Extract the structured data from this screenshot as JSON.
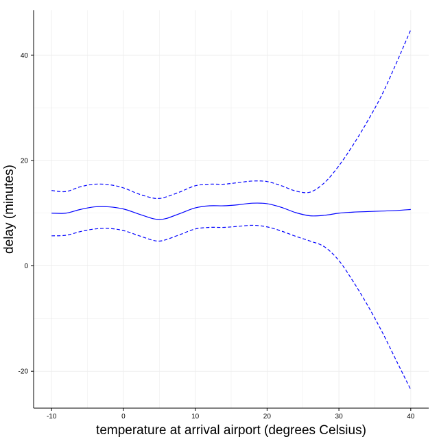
{
  "chart_data": {
    "type": "line",
    "title": "",
    "xlabel": "temperature at arrival airport (degrees Celsius)",
    "ylabel": "delay (minutes)",
    "xlim": [
      -12.5,
      42.5
    ],
    "ylim": [
      -27,
      48.5
    ],
    "x_ticks": [
      -10,
      0,
      10,
      20,
      30,
      40
    ],
    "x_tick_labels": [
      "-10",
      "0",
      "10",
      "20",
      "30",
      "40"
    ],
    "y_ticks": [
      -20,
      0,
      20,
      40
    ],
    "y_tick_labels": [
      "-20",
      "0",
      "20",
      "40"
    ],
    "grid": true,
    "legend": "none",
    "colors": {
      "line": "#0000ff",
      "grid": "#ebebeb",
      "axis": "#000000"
    },
    "series": [
      {
        "style": "dashed",
        "role": "upper",
        "x": [
          -10,
          -8,
          -6,
          -4,
          -2,
          0,
          2,
          4,
          5,
          6,
          8,
          10,
          12,
          14,
          16,
          18,
          20,
          22,
          24,
          26,
          28,
          30,
          32,
          34,
          36,
          38,
          40
        ],
        "y": [
          14.3,
          14.1,
          15.0,
          15.5,
          15.4,
          14.8,
          13.7,
          12.9,
          12.8,
          13.1,
          14.1,
          15.2,
          15.5,
          15.5,
          15.8,
          16.1,
          16.0,
          15.2,
          14.2,
          14.0,
          15.8,
          19.0,
          23.0,
          27.5,
          32.5,
          38.5,
          44.8
        ]
      },
      {
        "style": "solid",
        "role": "estimate",
        "x": [
          -10,
          -8,
          -6,
          -4,
          -2,
          0,
          2,
          4,
          5,
          6,
          8,
          10,
          12,
          14,
          16,
          18,
          20,
          22,
          24,
          26,
          28,
          30,
          32,
          34,
          36,
          38,
          40
        ],
        "y": [
          10.0,
          10.0,
          10.7,
          11.2,
          11.2,
          10.8,
          9.9,
          9.0,
          8.8,
          9.0,
          10.0,
          11.0,
          11.4,
          11.4,
          11.6,
          11.9,
          11.8,
          11.1,
          10.1,
          9.5,
          9.6,
          10.0,
          10.2,
          10.3,
          10.4,
          10.5,
          10.7
        ]
      },
      {
        "style": "dashed",
        "role": "lower",
        "x": [
          -10,
          -8,
          -6,
          -4,
          -2,
          0,
          2,
          4,
          5,
          6,
          8,
          10,
          12,
          14,
          16,
          18,
          20,
          22,
          24,
          26,
          28,
          30,
          32,
          34,
          36,
          38,
          40
        ],
        "y": [
          5.7,
          5.8,
          6.5,
          7.0,
          7.1,
          6.7,
          5.8,
          4.9,
          4.7,
          5.0,
          6.0,
          7.0,
          7.3,
          7.3,
          7.5,
          7.7,
          7.4,
          6.6,
          5.6,
          4.7,
          3.6,
          1.0,
          -3.0,
          -7.5,
          -12.5,
          -18.0,
          -23.5
        ]
      }
    ]
  }
}
